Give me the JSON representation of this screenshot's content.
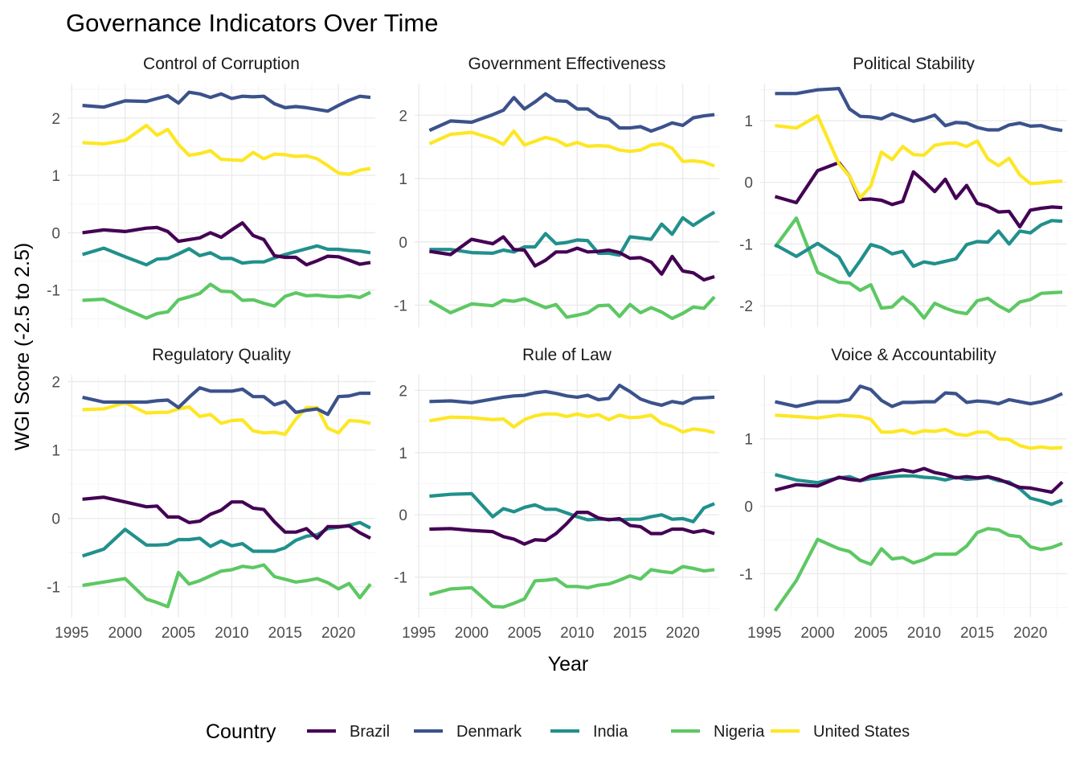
{
  "chart_data": {
    "type": "line",
    "title": "Governance Indicators Over Time",
    "xlabel": "Year",
    "ylabel": "WGI Score (-2.5 to 2.5)",
    "legend_title": "Country",
    "legend_position": "bottom",
    "grid": true,
    "xlim": [
      1995,
      2023
    ],
    "x_ticks": [
      1995,
      2000,
      2005,
      2010,
      2015,
      2020
    ],
    "x": [
      1996,
      1998,
      2000,
      2002,
      2003,
      2004,
      2005,
      2006,
      2007,
      2008,
      2009,
      2010,
      2011,
      2012,
      2013,
      2014,
      2015,
      2016,
      2017,
      2018,
      2019,
      2020,
      2021,
      2022,
      2023
    ],
    "colors": {
      "Brazil": "#440154",
      "Denmark": "#3b528b",
      "India": "#21908c",
      "Nigeria": "#5dc863",
      "United States": "#fde725"
    },
    "series_order": [
      "Nigeria",
      "India",
      "Brazil",
      "United States",
      "Denmark"
    ],
    "legend": [
      "Brazil",
      "Denmark",
      "India",
      "Nigeria",
      "United States"
    ],
    "panels": [
      {
        "strip": "Control of Corruption",
        "ylim": [
          -1.65,
          2.6
        ],
        "y_ticks": [
          -1,
          0,
          1,
          2
        ],
        "series": {
          "Brazil": [
            0.0,
            0.05,
            0.02,
            0.08,
            0.09,
            0.02,
            -0.15,
            -0.12,
            -0.09,
            0.0,
            -0.08,
            0.05,
            0.17,
            -0.05,
            -0.12,
            -0.4,
            -0.43,
            -0.43,
            -0.56,
            -0.49,
            -0.41,
            -0.42,
            -0.48,
            -0.55,
            -0.52
          ],
          "Denmark": [
            2.22,
            2.19,
            2.3,
            2.29,
            2.34,
            2.39,
            2.26,
            2.45,
            2.42,
            2.36,
            2.42,
            2.34,
            2.38,
            2.37,
            2.38,
            2.25,
            2.18,
            2.2,
            2.18,
            2.15,
            2.12,
            2.22,
            2.31,
            2.38,
            2.36
          ],
          "India": [
            -0.38,
            -0.27,
            -0.42,
            -0.56,
            -0.46,
            -0.45,
            -0.37,
            -0.28,
            -0.4,
            -0.35,
            -0.45,
            -0.45,
            -0.53,
            -0.51,
            -0.51,
            -0.44,
            -0.38,
            -0.33,
            -0.28,
            -0.23,
            -0.29,
            -0.29,
            -0.31,
            -0.32,
            -0.35
          ],
          "Nigeria": [
            -1.18,
            -1.16,
            -1.33,
            -1.49,
            -1.41,
            -1.38,
            -1.17,
            -1.12,
            -1.06,
            -0.9,
            -1.02,
            -1.03,
            -1.18,
            -1.17,
            -1.23,
            -1.28,
            -1.11,
            -1.05,
            -1.1,
            -1.09,
            -1.11,
            -1.12,
            -1.1,
            -1.13,
            -1.04
          ],
          "United States": [
            1.57,
            1.55,
            1.61,
            1.87,
            1.7,
            1.8,
            1.54,
            1.35,
            1.38,
            1.43,
            1.28,
            1.27,
            1.26,
            1.4,
            1.29,
            1.37,
            1.36,
            1.33,
            1.34,
            1.29,
            1.17,
            1.04,
            1.02,
            1.09,
            1.12
          ]
        }
      },
      {
        "strip": "Government Effectiveness",
        "ylim": [
          -1.35,
          2.5
        ],
        "y_ticks": [
          -1,
          0,
          1,
          2
        ],
        "series": {
          "Brazil": [
            -0.15,
            -0.2,
            0.04,
            -0.03,
            0.08,
            -0.12,
            -0.13,
            -0.38,
            -0.29,
            -0.16,
            -0.16,
            -0.1,
            -0.16,
            -0.15,
            -0.13,
            -0.17,
            -0.26,
            -0.25,
            -0.32,
            -0.51,
            -0.23,
            -0.46,
            -0.49,
            -0.6,
            -0.55
          ],
          "Denmark": [
            1.76,
            1.91,
            1.89,
            2.01,
            2.08,
            2.28,
            2.1,
            2.21,
            2.34,
            2.23,
            2.22,
            2.1,
            2.1,
            1.98,
            1.94,
            1.8,
            1.8,
            1.82,
            1.75,
            1.81,
            1.88,
            1.84,
            1.96,
            1.99,
            2.01
          ],
          "India": [
            -0.12,
            -0.12,
            -0.17,
            -0.18,
            -0.13,
            -0.16,
            -0.08,
            -0.08,
            0.13,
            -0.03,
            -0.01,
            0.03,
            0.02,
            -0.18,
            -0.18,
            -0.21,
            0.08,
            0.06,
            0.04,
            0.28,
            0.12,
            0.38,
            0.26,
            0.37,
            0.47
          ],
          "Nigeria": [
            -0.93,
            -1.12,
            -0.98,
            -1.01,
            -0.92,
            -0.94,
            -0.9,
            -0.97,
            -1.04,
            -0.99,
            -1.19,
            -1.16,
            -1.12,
            -1.01,
            -1.0,
            -1.18,
            -0.99,
            -1.12,
            -1.04,
            -1.11,
            -1.21,
            -1.13,
            -1.03,
            -1.05,
            -0.87
          ],
          "United States": [
            1.55,
            1.7,
            1.73,
            1.63,
            1.54,
            1.75,
            1.53,
            1.59,
            1.65,
            1.61,
            1.52,
            1.57,
            1.51,
            1.52,
            1.51,
            1.45,
            1.43,
            1.45,
            1.53,
            1.55,
            1.48,
            1.27,
            1.28,
            1.26,
            1.2
          ]
        }
      },
      {
        "strip": "Political Stability",
        "ylim": [
          -2.35,
          1.6
        ],
        "y_ticks": [
          -2,
          -1,
          0,
          1
        ],
        "series": {
          "Brazil": [
            -0.23,
            -0.33,
            0.19,
            0.32,
            0.1,
            -0.28,
            -0.27,
            -0.29,
            -0.36,
            -0.31,
            0.17,
            0.02,
            -0.15,
            0.05,
            -0.26,
            -0.05,
            -0.34,
            -0.39,
            -0.48,
            -0.47,
            -0.72,
            -0.45,
            -0.42,
            -0.4,
            -0.41
          ],
          "Denmark": [
            1.44,
            1.44,
            1.5,
            1.52,
            1.19,
            1.07,
            1.06,
            1.03,
            1.11,
            1.05,
            0.99,
            1.03,
            1.09,
            0.92,
            0.97,
            0.96,
            0.89,
            0.85,
            0.85,
            0.93,
            0.96,
            0.91,
            0.92,
            0.87,
            0.84
          ],
          "India": [
            -1.01,
            -1.2,
            -0.99,
            -1.21,
            -1.51,
            -1.27,
            -1.01,
            -1.06,
            -1.16,
            -1.12,
            -1.36,
            -1.29,
            -1.32,
            -1.28,
            -1.24,
            -1.01,
            -0.96,
            -0.97,
            -0.79,
            -1.0,
            -0.79,
            -0.82,
            -0.69,
            -0.62,
            -0.63
          ],
          "Nigeria": [
            -1.05,
            -0.58,
            -1.46,
            -1.62,
            -1.63,
            -1.75,
            -1.66,
            -2.04,
            -2.02,
            -1.86,
            -1.99,
            -2.2,
            -1.96,
            -2.04,
            -2.1,
            -2.13,
            -1.92,
            -1.88,
            -2.0,
            -2.09,
            -1.94,
            -1.9,
            -1.8,
            -1.79,
            -1.78
          ],
          "United States": [
            0.92,
            0.88,
            1.08,
            0.3,
            0.1,
            -0.25,
            -0.06,
            0.49,
            0.37,
            0.58,
            0.45,
            0.44,
            0.6,
            0.63,
            0.64,
            0.58,
            0.67,
            0.38,
            0.27,
            0.39,
            0.12,
            -0.02,
            -0.01,
            0.01,
            0.02
          ]
        }
      },
      {
        "strip": "Regulatory Quality",
        "ylim": [
          -1.45,
          2.1
        ],
        "y_ticks": [
          -1,
          0,
          1,
          2
        ],
        "series": {
          "Brazil": [
            0.28,
            0.31,
            0.24,
            0.17,
            0.18,
            0.02,
            0.02,
            -0.06,
            -0.04,
            0.06,
            0.12,
            0.24,
            0.24,
            0.15,
            0.13,
            -0.05,
            -0.2,
            -0.2,
            -0.15,
            -0.29,
            -0.12,
            -0.12,
            -0.11,
            -0.21,
            -0.29
          ],
          "Denmark": [
            1.77,
            1.7,
            1.7,
            1.7,
            1.72,
            1.73,
            1.62,
            1.77,
            1.91,
            1.86,
            1.86,
            1.86,
            1.89,
            1.78,
            1.78,
            1.66,
            1.71,
            1.55,
            1.58,
            1.6,
            1.52,
            1.78,
            1.79,
            1.83,
            1.83
          ],
          "India": [
            -0.55,
            -0.45,
            -0.16,
            -0.39,
            -0.39,
            -0.38,
            -0.31,
            -0.31,
            -0.29,
            -0.41,
            -0.33,
            -0.4,
            -0.37,
            -0.48,
            -0.48,
            -0.48,
            -0.43,
            -0.32,
            -0.26,
            -0.24,
            -0.15,
            -0.13,
            -0.1,
            -0.06,
            -0.14
          ],
          "Nigeria": [
            -0.98,
            -0.93,
            -0.88,
            -1.18,
            -1.23,
            -1.29,
            -0.79,
            -0.96,
            -0.91,
            -0.84,
            -0.77,
            -0.75,
            -0.7,
            -0.72,
            -0.68,
            -0.85,
            -0.89,
            -0.93,
            -0.91,
            -0.88,
            -0.94,
            -1.03,
            -0.95,
            -1.16,
            -0.96
          ],
          "United States": [
            1.59,
            1.6,
            1.69,
            1.54,
            1.55,
            1.55,
            1.6,
            1.63,
            1.49,
            1.52,
            1.39,
            1.43,
            1.44,
            1.28,
            1.25,
            1.26,
            1.23,
            1.45,
            1.62,
            1.62,
            1.32,
            1.25,
            1.43,
            1.42,
            1.39
          ]
        }
      },
      {
        "strip": "Rule of Law",
        "ylim": [
          -1.65,
          2.25
        ],
        "y_ticks": [
          -1,
          0,
          1,
          2
        ],
        "series": {
          "Brazil": [
            -0.23,
            -0.22,
            -0.25,
            -0.27,
            -0.35,
            -0.39,
            -0.47,
            -0.4,
            -0.41,
            -0.3,
            -0.14,
            0.04,
            0.04,
            -0.05,
            -0.08,
            -0.06,
            -0.17,
            -0.19,
            -0.3,
            -0.3,
            -0.23,
            -0.23,
            -0.28,
            -0.25,
            -0.3
          ],
          "Denmark": [
            1.82,
            1.83,
            1.8,
            1.86,
            1.89,
            1.91,
            1.92,
            1.96,
            1.98,
            1.95,
            1.91,
            1.89,
            1.92,
            1.85,
            1.87,
            2.08,
            1.98,
            1.86,
            1.8,
            1.76,
            1.82,
            1.79,
            1.87,
            1.88,
            1.89
          ],
          "India": [
            0.3,
            0.33,
            0.34,
            -0.03,
            0.1,
            0.05,
            0.12,
            0.16,
            0.09,
            0.09,
            0.03,
            -0.03,
            -0.08,
            -0.07,
            -0.07,
            -0.08,
            -0.07,
            -0.07,
            -0.03,
            0.0,
            -0.07,
            -0.06,
            -0.11,
            0.11,
            0.18
          ],
          "Nigeria": [
            -1.28,
            -1.19,
            -1.17,
            -1.47,
            -1.48,
            -1.42,
            -1.35,
            -1.06,
            -1.05,
            -1.03,
            -1.15,
            -1.15,
            -1.17,
            -1.13,
            -1.11,
            -1.05,
            -0.98,
            -1.03,
            -0.88,
            -0.91,
            -0.93,
            -0.83,
            -0.86,
            -0.9,
            -0.88
          ],
          "United States": [
            1.51,
            1.57,
            1.56,
            1.53,
            1.54,
            1.41,
            1.53,
            1.59,
            1.62,
            1.62,
            1.58,
            1.62,
            1.58,
            1.61,
            1.53,
            1.6,
            1.56,
            1.57,
            1.6,
            1.47,
            1.42,
            1.33,
            1.38,
            1.36,
            1.32
          ]
        }
      },
      {
        "strip": "Voice & Accountability",
        "ylim": [
          -1.65,
          1.95
        ],
        "y_ticks": [
          -1,
          0,
          1
        ],
        "series": {
          "Brazil": [
            0.24,
            0.32,
            0.3,
            0.43,
            0.4,
            0.38,
            0.45,
            0.48,
            0.51,
            0.54,
            0.51,
            0.56,
            0.5,
            0.47,
            0.42,
            0.44,
            0.42,
            0.44,
            0.4,
            0.34,
            0.28,
            0.27,
            0.24,
            0.21,
            0.36
          ],
          "Denmark": [
            1.55,
            1.48,
            1.55,
            1.55,
            1.58,
            1.78,
            1.73,
            1.57,
            1.48,
            1.54,
            1.54,
            1.55,
            1.55,
            1.68,
            1.67,
            1.54,
            1.56,
            1.55,
            1.52,
            1.58,
            1.55,
            1.52,
            1.55,
            1.6,
            1.67
          ],
          "India": [
            0.47,
            0.39,
            0.35,
            0.42,
            0.44,
            0.38,
            0.41,
            0.42,
            0.44,
            0.45,
            0.45,
            0.43,
            0.42,
            0.39,
            0.43,
            0.4,
            0.41,
            0.43,
            0.38,
            0.36,
            0.26,
            0.12,
            0.08,
            0.03,
            0.09
          ],
          "Nigeria": [
            -1.55,
            -1.1,
            -0.49,
            -0.63,
            -0.67,
            -0.8,
            -0.86,
            -0.63,
            -0.78,
            -0.76,
            -0.84,
            -0.79,
            -0.71,
            -0.71,
            -0.71,
            -0.59,
            -0.39,
            -0.33,
            -0.35,
            -0.43,
            -0.45,
            -0.6,
            -0.64,
            -0.61,
            -0.55
          ],
          "United States": [
            1.35,
            1.33,
            1.31,
            1.35,
            1.34,
            1.33,
            1.29,
            1.1,
            1.1,
            1.13,
            1.08,
            1.12,
            1.11,
            1.14,
            1.07,
            1.05,
            1.1,
            1.1,
            1.0,
            0.99,
            0.9,
            0.86,
            0.88,
            0.86,
            0.87
          ]
        }
      }
    ]
  }
}
